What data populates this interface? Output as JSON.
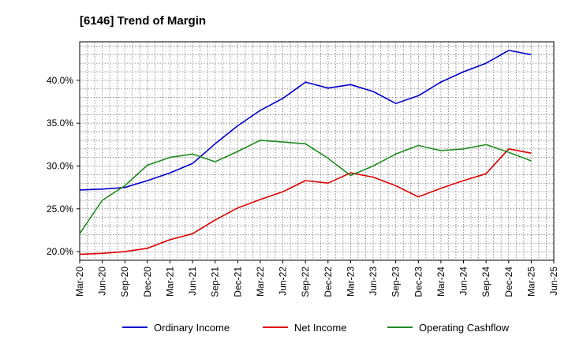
{
  "chart_data": {
    "type": "line",
    "title": "[6146]  Trend of Margin",
    "xlabel": "",
    "ylabel": "",
    "x": [
      "Mar-20",
      "Jun-20",
      "Sep-20",
      "Dec-20",
      "Mar-21",
      "Jun-21",
      "Sep-21",
      "Dec-21",
      "Mar-22",
      "Jun-22",
      "Sep-22",
      "Dec-22",
      "Mar-23",
      "Jun-23",
      "Sep-23",
      "Dec-23",
      "Mar-24",
      "Jun-24",
      "Sep-24",
      "Dec-24",
      "Mar-25",
      "Jun-25"
    ],
    "ylim": [
      19.0,
      44.5
    ],
    "yticks": [
      20,
      25,
      30,
      35,
      40
    ],
    "ytick_labels": [
      "20.0%",
      "25.0%",
      "30.0%",
      "35.0%",
      "40.0%"
    ],
    "grid": true,
    "legend_position": "bottom",
    "series": [
      {
        "name": "Ordinary Income",
        "color": "#0000cc",
        "values": [
          27.2,
          27.3,
          27.5,
          28.3,
          29.2,
          30.3,
          32.6,
          34.7,
          36.5,
          37.9,
          39.8,
          39.1,
          39.5,
          38.7,
          37.3,
          38.2,
          39.8,
          41.0,
          42.0,
          43.5,
          43.0,
          null
        ]
      },
      {
        "name": "Net Income",
        "color": "#dd0000",
        "values": [
          19.7,
          19.8,
          20.0,
          20.4,
          21.4,
          22.1,
          23.7,
          25.1,
          26.1,
          27.0,
          28.3,
          28.0,
          29.2,
          28.7,
          27.7,
          26.4,
          27.4,
          28.3,
          29.1,
          32.0,
          31.5,
          null
        ]
      },
      {
        "name": "Operating Cashflow",
        "color": "#228b22",
        "values": [
          22.1,
          26.0,
          27.7,
          30.1,
          31.0,
          31.4,
          30.5,
          31.7,
          33.0,
          32.8,
          32.6,
          30.9,
          28.9,
          30.0,
          31.4,
          32.4,
          31.8,
          32.0,
          32.5,
          31.6,
          30.6,
          null
        ]
      }
    ]
  }
}
